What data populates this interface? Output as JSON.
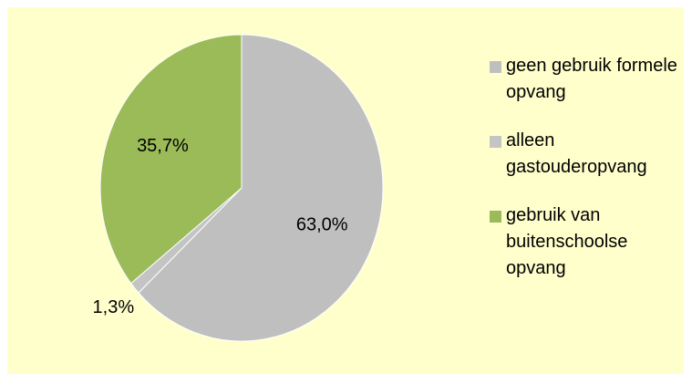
{
  "chart_data": {
    "type": "pie",
    "categories": [
      "geen gebruik formele opvang",
      "alleen gastouderopvang",
      "gebruik van buitenschoolse opvang"
    ],
    "values": [
      63.0,
      1.3,
      35.7
    ],
    "value_labels": [
      "63,0%",
      "1,3%",
      "35,7%"
    ],
    "colors": [
      "#bfbfbf",
      "#c4c4c4",
      "#9bbb59"
    ],
    "legend": "right"
  }
}
